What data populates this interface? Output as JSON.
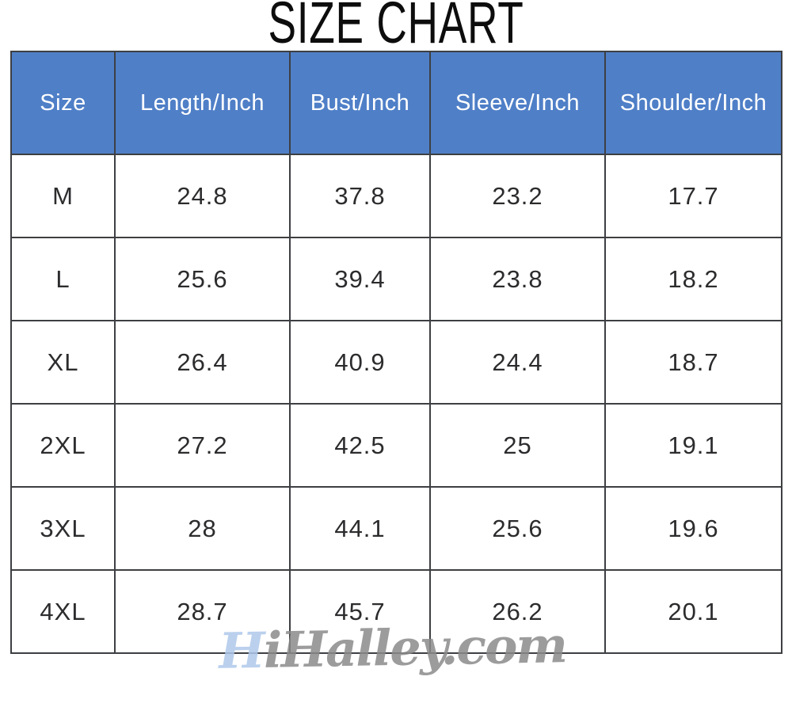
{
  "title": "SIZE CHART",
  "table": {
    "columns": [
      "Size",
      "Length/Inch",
      "Bust/Inch",
      "Sleeve/Inch",
      "Shoulder/Inch"
    ],
    "rows": [
      [
        "M",
        "24.8",
        "37.8",
        "23.2",
        "17.7"
      ],
      [
        "L",
        "25.6",
        "39.4",
        "23.8",
        "18.2"
      ],
      [
        "XL",
        "26.4",
        "40.9",
        "24.4",
        "18.7"
      ],
      [
        "2XL",
        "27.2",
        "42.5",
        "25",
        "19.1"
      ],
      [
        "3XL",
        "28",
        "44.1",
        "25.6",
        "19.6"
      ],
      [
        "4XL",
        "28.7",
        "45.7",
        "26.2",
        "20.1"
      ]
    ]
  },
  "watermark": {
    "prefix": "H",
    "rest": "iHalley.com"
  },
  "colors": {
    "header_bg": "#4f7fc7",
    "header_text": "#ffffff",
    "border": "#3d3f42",
    "body_text": "#2c2c2e",
    "watermark_blue": "#aec8ea",
    "watermark_gray": "#8b8b8b"
  },
  "chart_data": {
    "type": "table",
    "title": "SIZE CHART",
    "columns": [
      "Size",
      "Length/Inch",
      "Bust/Inch",
      "Sleeve/Inch",
      "Shoulder/Inch"
    ],
    "rows": [
      [
        "M",
        24.8,
        37.8,
        23.2,
        17.7
      ],
      [
        "L",
        25.6,
        39.4,
        23.8,
        18.2
      ],
      [
        "XL",
        26.4,
        40.9,
        24.4,
        18.7
      ],
      [
        "2XL",
        27.2,
        42.5,
        25,
        19.1
      ],
      [
        "3XL",
        28,
        44.1,
        25.6,
        19.6
      ],
      [
        "4XL",
        28.7,
        45.7,
        26.2,
        20.1
      ]
    ]
  }
}
